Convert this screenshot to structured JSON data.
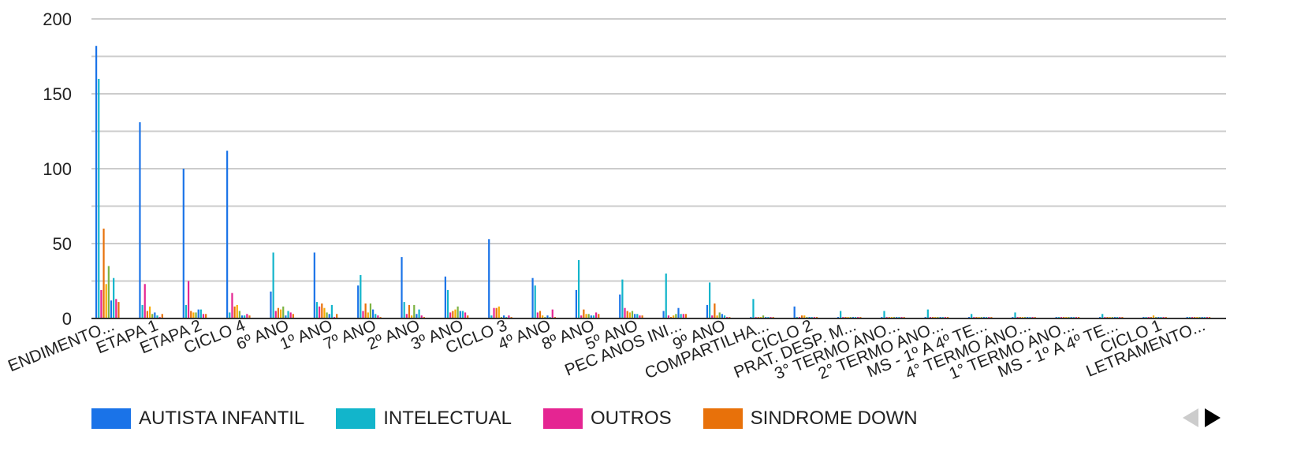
{
  "chart_data": {
    "type": "bar",
    "ylim": [
      0,
      200
    ],
    "yticks": [
      0,
      50,
      100,
      150,
      200
    ],
    "grid": true,
    "legend_position": "bottom",
    "categories": [
      "ENDIMENTO...",
      "ETAPA 1",
      "ETAPA 2",
      "CICLO 4",
      "6º ANO",
      "1º ANO",
      "7º ANO",
      "2º ANO",
      "3º ANO",
      "CICLO 3",
      "4º ANO",
      "8º ANO",
      "5º ANO",
      "PEC ANOS INI...",
      "9º ANO",
      "COMPARTILHA...",
      "CICLO 2",
      "PRAT. DESP. M...",
      "3° TERMO ANO...",
      "2° TERMO ANO...",
      "MS - 1º A 4º TE...",
      "4° TERMO ANO...",
      "1° TERMO ANO...",
      "MS - 1º A 4º TE...",
      "CICLO 1",
      "LETRAMENTO..."
    ],
    "series": [
      {
        "name": "AUTISTA INFANTIL",
        "color": "#1a73e8",
        "values": [
          182,
          131,
          100,
          112,
          18,
          44,
          22,
          41,
          28,
          53,
          27,
          19,
          16,
          5,
          9,
          1,
          8,
          1,
          1,
          1,
          1,
          1,
          1,
          1,
          1,
          1
        ]
      },
      {
        "name": "INTELECTUAL",
        "color": "#12b5cb",
        "values": [
          160,
          9,
          9,
          4,
          44,
          11,
          29,
          11,
          19,
          2,
          22,
          39,
          26,
          30,
          24,
          13,
          1,
          5,
          5,
          6,
          3,
          4,
          1,
          3,
          1,
          1
        ]
      },
      {
        "name": "OUTROS",
        "color": "#e52592",
        "values": [
          19,
          23,
          25,
          17,
          5,
          8,
          5,
          3,
          4,
          7,
          4,
          2,
          7,
          2,
          2,
          1,
          1,
          1,
          1,
          1,
          1,
          1,
          1,
          1,
          1,
          1
        ]
      },
      {
        "name": "SINDROME DOWN",
        "color": "#e8710a",
        "values": [
          60,
          5,
          5,
          8,
          7,
          10,
          10,
          9,
          5,
          7,
          5,
          6,
          5,
          1,
          10,
          1,
          2,
          1,
          1,
          1,
          1,
          1,
          1,
          1,
          1,
          1
        ]
      },
      {
        "name": "",
        "color": "#f9ab00",
        "values": [
          23,
          8,
          4,
          9,
          6,
          7,
          4,
          2,
          6,
          8,
          2,
          3,
          4,
          2,
          2,
          1,
          2,
          1,
          1,
          1,
          1,
          1,
          1,
          1,
          2,
          1
        ]
      },
      {
        "name": "",
        "color": "#7cb342",
        "values": [
          35,
          3,
          4,
          5,
          8,
          4,
          10,
          9,
          8,
          1,
          1,
          3,
          5,
          3,
          4,
          2,
          1,
          1,
          1,
          1,
          1,
          1,
          1,
          1,
          1,
          1
        ]
      },
      {
        "name": "",
        "color": "#1a73e8",
        "values": [
          12,
          4,
          6,
          2,
          2,
          3,
          6,
          3,
          5,
          2,
          2,
          2,
          3,
          7,
          3,
          1,
          1,
          1,
          1,
          1,
          1,
          1,
          1,
          1,
          1,
          1
        ]
      },
      {
        "name": "",
        "color": "#12b5cb",
        "values": [
          27,
          2,
          6,
          2,
          5,
          9,
          3,
          6,
          5,
          1,
          1,
          2,
          3,
          3,
          2,
          1,
          1,
          1,
          1,
          1,
          1,
          1,
          1,
          1,
          1,
          1
        ]
      },
      {
        "name": "",
        "color": "#e52592",
        "values": [
          13,
          1,
          3,
          3,
          4,
          1,
          2,
          2,
          4,
          2,
          6,
          4,
          2,
          3,
          1,
          1,
          1,
          1,
          1,
          1,
          1,
          1,
          1,
          1,
          1,
          1
        ]
      },
      {
        "name": "",
        "color": "#e8710a",
        "values": [
          11,
          3,
          3,
          2,
          3,
          3,
          1,
          1,
          2,
          1,
          1,
          3,
          2,
          3,
          1,
          1,
          1,
          1,
          1,
          1,
          1,
          1,
          1,
          1,
          1,
          1
        ]
      }
    ]
  },
  "legend": {
    "items": [
      {
        "label": "AUTISTA INFANTIL",
        "color": "#1a73e8"
      },
      {
        "label": "INTELECTUAL",
        "color": "#12b5cb"
      },
      {
        "label": "OUTROS",
        "color": "#e52592"
      },
      {
        "label": "SINDROME DOWN",
        "color": "#e8710a"
      }
    ]
  },
  "pager": {
    "prev_icon": "triangle-left-icon",
    "next_icon": "triangle-right-icon",
    "prev_color": "#cccccc",
    "next_color": "#000000"
  }
}
